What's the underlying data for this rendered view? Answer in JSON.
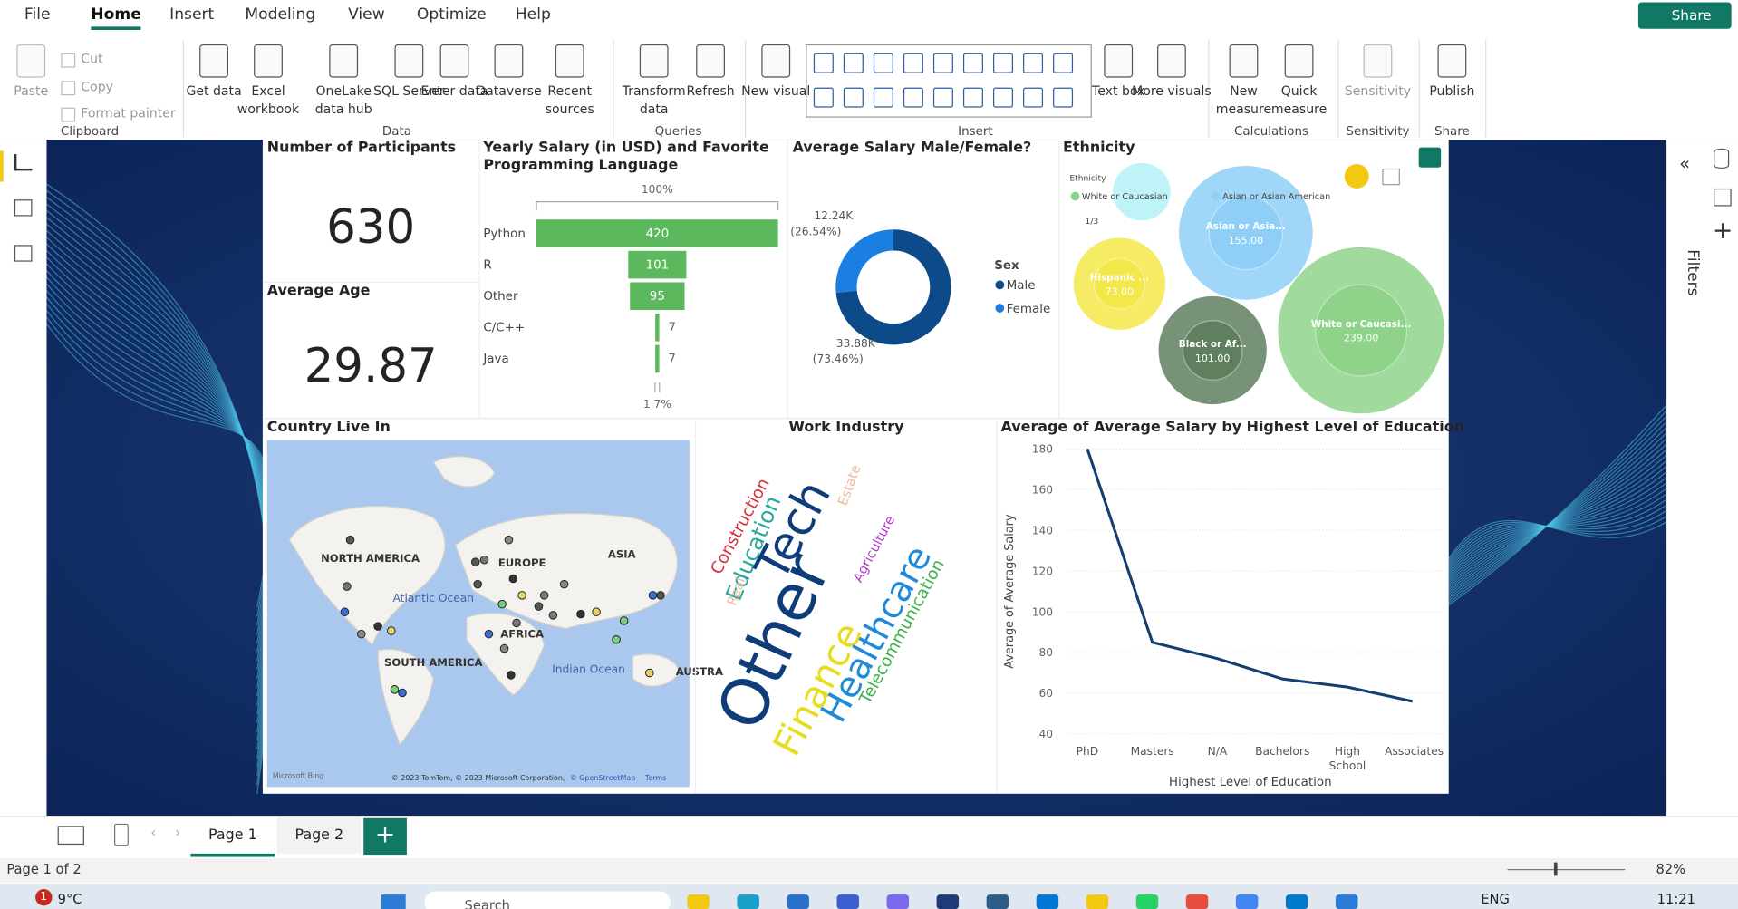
{
  "menu": [
    "File",
    "Home",
    "Insert",
    "Modeling",
    "View",
    "Optimize",
    "Help"
  ],
  "share": "Share",
  "ribbon": {
    "groups": [
      {
        "label": "Clipboard",
        "items": [
          "Paste",
          "Cut",
          "Copy",
          "Format painter"
        ]
      },
      {
        "label": "Data",
        "items": [
          "Get data",
          "Excel workbook",
          "OneLake data hub",
          "SQL Server",
          "Enter data",
          "Dataverse",
          "Recent sources"
        ]
      },
      {
        "label": "Queries",
        "items": [
          "Transform data",
          "Refresh"
        ]
      },
      {
        "label": "Insert",
        "items": [
          "New visual",
          "Text box",
          "More visuals"
        ]
      },
      {
        "label": "Calculations",
        "items": [
          "New measure",
          "Quick measure"
        ]
      },
      {
        "label": "Sensitivity",
        "items": [
          "Sensitivity"
        ]
      },
      {
        "label": "Share",
        "items": [
          "Publish"
        ]
      }
    ]
  },
  "cards": [
    {
      "title": "Number of Participants",
      "value": 630
    },
    {
      "title": "Average Age",
      "value": 29.87
    }
  ],
  "funnel": {
    "type": "funnel",
    "title": "Yearly Salary (in USD) and Favorite Programming Language",
    "categories": [
      "Python",
      "R",
      "Other",
      "C/C++",
      "Java"
    ],
    "values": [
      420,
      101,
      95,
      7,
      7
    ],
    "top_label": "100%",
    "bottom_label": "1.7%",
    "color": "#5cb85c"
  },
  "donut": {
    "type": "donut",
    "title": "Average Salary Male/Female?",
    "legend_title": "Sex",
    "categories": [
      "Male",
      "Female"
    ],
    "values": [
      33880,
      12240
    ],
    "value_labels": [
      "33.88K",
      "12.24K"
    ],
    "percent_labels": [
      "(73.46%)",
      "(26.54%)"
    ],
    "colors": [
      "#0d4a8a",
      "#1a7fe0"
    ]
  },
  "bubbles": {
    "type": "bubble",
    "title": "Ethnicity",
    "legend_title": "Ethnicity",
    "legend": [
      "White or Caucasian",
      "Asian or Asian American"
    ],
    "legend_page": "1/3",
    "categories": [
      "Hispanic ...",
      "Asian or Asia...",
      "Black or Af...",
      "White or Caucasi..."
    ],
    "values": [
      73,
      155,
      101,
      239
    ],
    "value_labels": [
      "73.00",
      "155.00",
      "101.00",
      "239.00"
    ],
    "colors": [
      "#f3e84a",
      "#8fcff7",
      "#5f7f5f",
      "#8fd38b"
    ]
  },
  "map": {
    "title": "Country Live In",
    "labels": [
      "NORTH AMERICA",
      "EUROPE",
      "ASIA",
      "AFRICA",
      "SOUTH AMERICA",
      "AUSTRA",
      "Atlantic Ocean",
      "Indian Ocean"
    ],
    "attribution": "© 2023 TomTom, © 2023 Microsoft Corporation,",
    "osm": "© OpenStreetMap",
    "terms": "Terms",
    "brand": "Microsoft Bing"
  },
  "wordcloud": {
    "title": "Work Industry",
    "words": [
      "Construction",
      "Education",
      "Real",
      "Estate",
      "Tech",
      "Other",
      "Agriculture",
      "Finance",
      "Healthcare",
      "Telecommunication"
    ]
  },
  "line": {
    "type": "line",
    "title": "Average of Average Salary by Highest Level of Education",
    "x_label": "Highest Level of Education",
    "y_label": "Average of Average Salary",
    "categories": [
      "PhD",
      "Masters",
      "N/A",
      "Bachelors",
      "High School",
      "Associates"
    ],
    "values": [
      180,
      85,
      77,
      67,
      63,
      56
    ],
    "ylim": [
      40,
      180
    ],
    "yticks": [
      40,
      60,
      80,
      100,
      120,
      140,
      160,
      180
    ],
    "color": "#123f6e"
  },
  "pages": [
    "Page 1",
    "Page 2"
  ],
  "filters": "Filters",
  "status": "Page 1 of 2",
  "zoom": "82%",
  "taskbar": {
    "weather": "9°C",
    "search": "Search",
    "lang": "ENG",
    "time": "11:21",
    "badge": "1"
  }
}
